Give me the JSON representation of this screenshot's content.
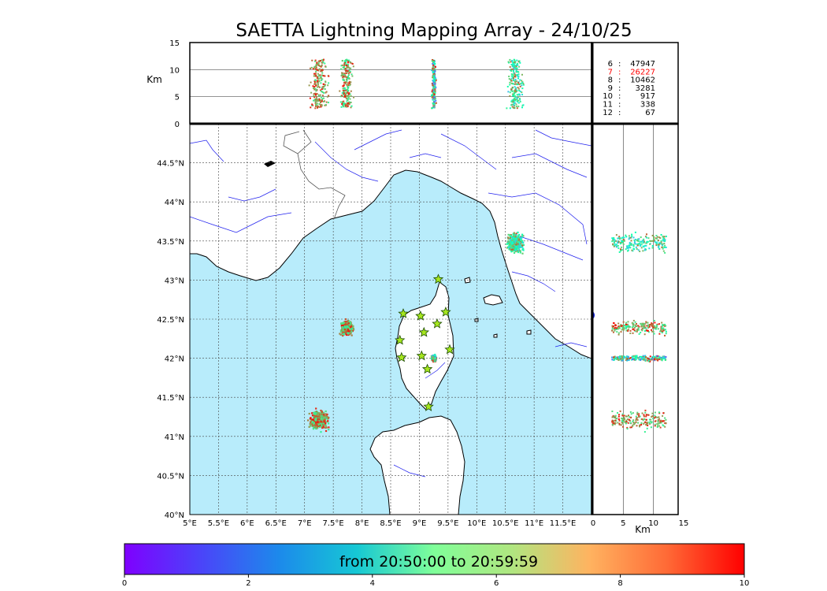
{
  "title": "SAETTA Lightning Mapping Array - 24/10/25",
  "colors": {
    "sea": "#b8ecfb",
    "land": "#ffffff",
    "coast": "#000000",
    "river": "#2020ee",
    "border": "#555555",
    "station_fill": "#a6e61e",
    "highlight": "#ff0000"
  },
  "counts": [
    {
      "level": "6",
      "value": "47947",
      "highlight": false
    },
    {
      "level": "7",
      "value": "26227",
      "highlight": true
    },
    {
      "level": "8",
      "value": "10462",
      "highlight": false
    },
    {
      "level": "9",
      "value": "3281",
      "highlight": false
    },
    {
      "level": "10",
      "value": "917",
      "highlight": false
    },
    {
      "level": "11",
      "value": "338",
      "highlight": false
    },
    {
      "level": "12",
      "value": "67",
      "highlight": false
    }
  ],
  "colorbar": {
    "label": "from 20:50:00 to 20:59:59",
    "ticks": [
      "0",
      "2",
      "4",
      "6",
      "8",
      "10"
    ],
    "colormap": "rainbow"
  },
  "chart_data": [
    {
      "type": "scatter",
      "name": "plan-view map",
      "xlim": [
        5,
        12
      ],
      "ylim": [
        40,
        45
      ],
      "xticks": [
        "5°E",
        "5.5°E",
        "6°E",
        "6.5°E",
        "7°E",
        "7.5°E",
        "8°E",
        "8.5°E",
        "9°E",
        "9.5°E",
        "10°E",
        "10.5°E",
        "11°E",
        "11.5°E"
      ],
      "yticks": [
        "40°N",
        "40.5°N",
        "41°N",
        "41.5°N",
        "42°N",
        "42.5°N",
        "43°N",
        "43.5°N",
        "44°N",
        "44.5°N"
      ],
      "grid": "dotted",
      "stations": [
        {
          "lon": 9.33,
          "lat": 43.01
        },
        {
          "lon": 8.72,
          "lat": 42.57
        },
        {
          "lon": 9.02,
          "lat": 42.54
        },
        {
          "lon": 9.46,
          "lat": 42.59
        },
        {
          "lon": 9.31,
          "lat": 42.44
        },
        {
          "lon": 9.08,
          "lat": 42.33
        },
        {
          "lon": 8.66,
          "lat": 42.23
        },
        {
          "lon": 9.53,
          "lat": 42.11
        },
        {
          "lon": 8.69,
          "lat": 42.01
        },
        {
          "lon": 9.04,
          "lat": 42.03
        },
        {
          "lon": 9.14,
          "lat": 41.86
        },
        {
          "lon": 9.16,
          "lat": 41.38
        }
      ],
      "clusters": [
        {
          "lon": 10.66,
          "lat": 43.48,
          "lon_spread": 0.18,
          "lat_spread": 0.16,
          "time_min": [
            2.5,
            9.0
          ]
        },
        {
          "lon": 7.72,
          "lat": 42.4,
          "lon_spread": 0.14,
          "lat_spread": 0.12,
          "time_min": [
            5.5,
            10.0
          ]
        },
        {
          "lon": 9.24,
          "lat": 42.01,
          "lon_spread": 0.05,
          "lat_spread": 0.05,
          "time_min": [
            1.0,
            10.0
          ]
        },
        {
          "lon": 7.23,
          "lat": 41.22,
          "lon_spread": 0.2,
          "lat_spread": 0.16,
          "time_min": [
            6.0,
            10.0
          ]
        }
      ]
    },
    {
      "type": "scatter",
      "name": "longitude-altitude",
      "xlim": [
        5,
        12
      ],
      "ylabel": "Km",
      "ylim": [
        0,
        15
      ],
      "yticks": [
        "0",
        "5",
        "10",
        "15"
      ]
    },
    {
      "type": "scatter",
      "name": "altitude-latitude",
      "xlabel": "Km",
      "xlim": [
        0,
        15
      ],
      "xticks": [
        "0",
        "5",
        "10",
        "15"
      ],
      "ylim": [
        40,
        45
      ]
    }
  ]
}
